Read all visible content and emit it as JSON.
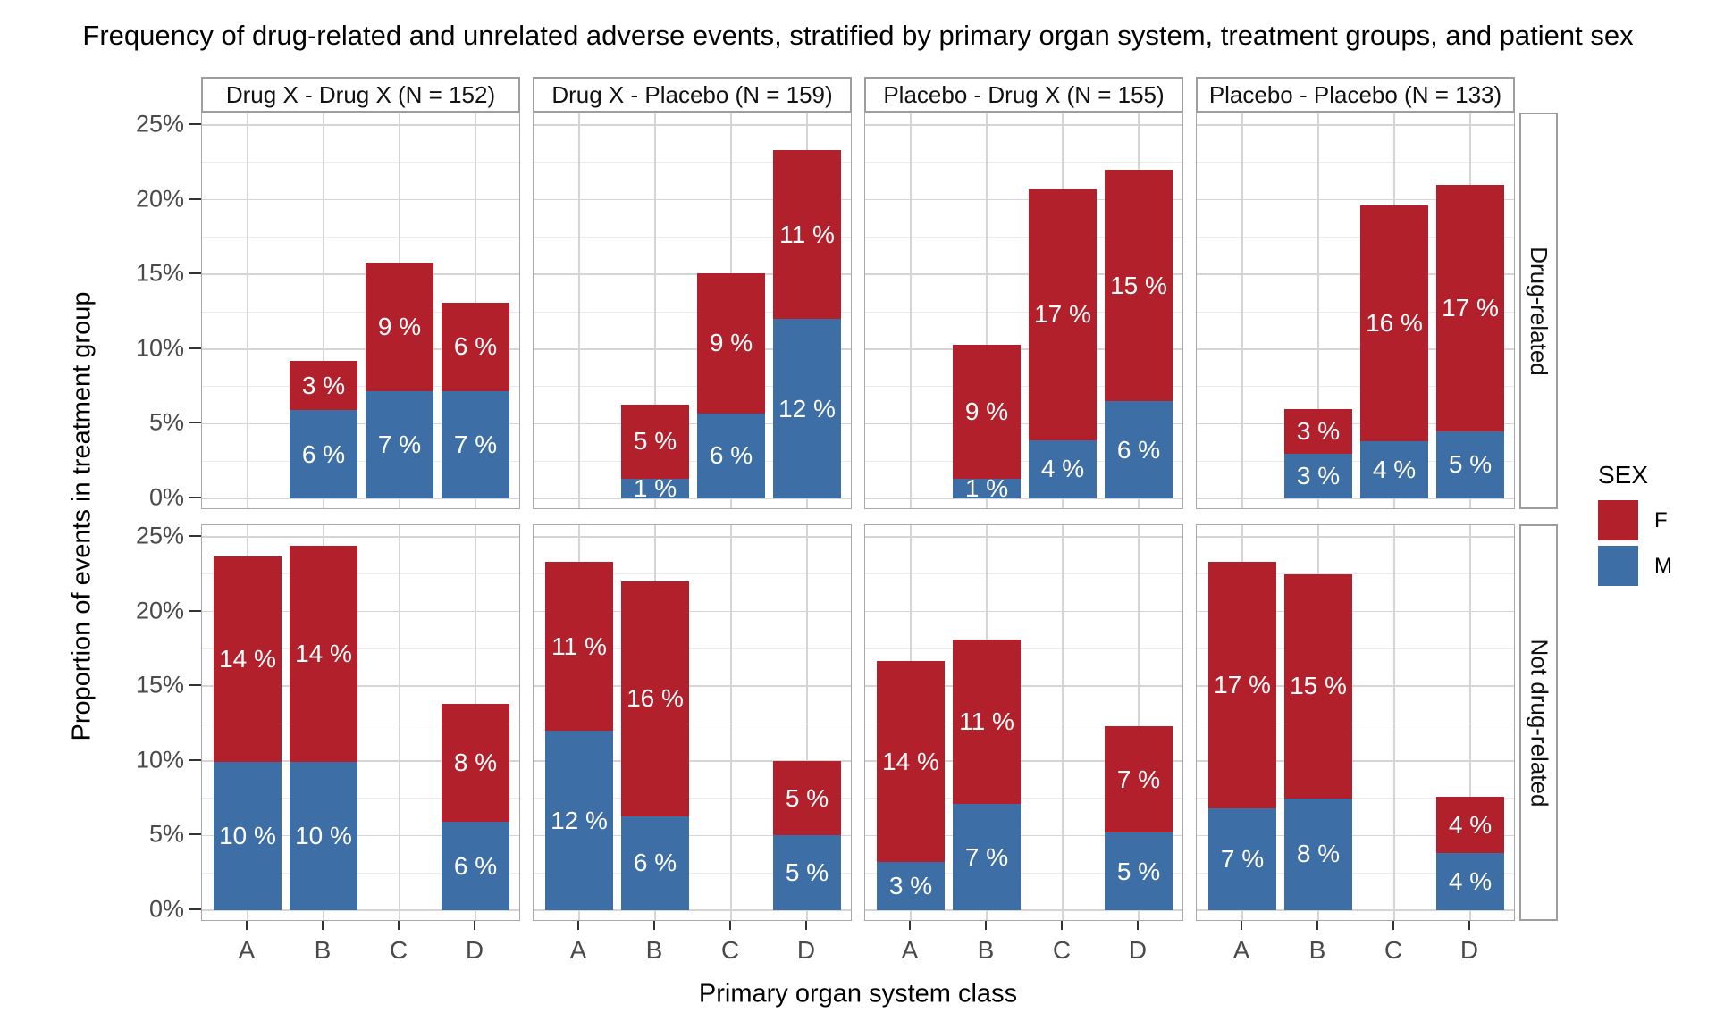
{
  "chart_data": {
    "type": "bar",
    "stacked": true,
    "title": "Frequency of drug-related and unrelated adverse events, stratified by primary organ system, treatment groups, and patient sex",
    "xlabel": "Primary organ system class",
    "ylabel": "Proportion of events in treatment group",
    "categories": [
      "A",
      "B",
      "C",
      "D"
    ],
    "y_axis": {
      "min": 0,
      "max": 25,
      "unit": "%",
      "major_ticks": [
        0,
        5,
        10,
        15,
        20,
        25
      ],
      "tick_labels": [
        "0%",
        "5%",
        "10%",
        "15%",
        "20%",
        "25%"
      ],
      "minor_ticks": [
        2.5,
        7.5,
        12.5,
        17.5,
        22.5
      ],
      "grid": true
    },
    "legend": {
      "title": "SEX",
      "position": "right",
      "entries": [
        {
          "label": "F",
          "color": "#B2202B"
        },
        {
          "label": "M",
          "color": "#3E6EA6"
        }
      ]
    },
    "col_facets": [
      "Drug X - Drug X (N = 152)",
      "Drug X - Placebo (N = 159)",
      "Placebo - Drug X (N = 155)",
      "Placebo - Placebo (N = 133)"
    ],
    "row_facets": [
      "Drug-related",
      "Not drug-related"
    ],
    "panels": [
      {
        "row": 0,
        "col": 0,
        "row_facet": "Drug-related",
        "col_facet": "Drug X - Drug X (N = 152)",
        "bars": [
          {
            "category": "B",
            "segments": [
              {
                "group": "M",
                "value": 5.9,
                "label": "6 %"
              },
              {
                "group": "F",
                "value": 3.3,
                "label": "3 %"
              }
            ]
          },
          {
            "category": "C",
            "segments": [
              {
                "group": "M",
                "value": 7.2,
                "label": "7 %"
              },
              {
                "group": "F",
                "value": 8.6,
                "label": "9 %"
              }
            ]
          },
          {
            "category": "D",
            "segments": [
              {
                "group": "M",
                "value": 7.2,
                "label": "7 %"
              },
              {
                "group": "F",
                "value": 5.9,
                "label": "6 %"
              }
            ]
          }
        ]
      },
      {
        "row": 0,
        "col": 1,
        "row_facet": "Drug-related",
        "col_facet": "Drug X - Placebo (N = 159)",
        "bars": [
          {
            "category": "B",
            "segments": [
              {
                "group": "M",
                "value": 1.3,
                "label": "1 %"
              },
              {
                "group": "F",
                "value": 5.0,
                "label": "5 %"
              }
            ]
          },
          {
            "category": "C",
            "segments": [
              {
                "group": "M",
                "value": 5.7,
                "label": "6 %"
              },
              {
                "group": "F",
                "value": 9.4,
                "label": "9 %"
              }
            ]
          },
          {
            "category": "D",
            "segments": [
              {
                "group": "M",
                "value": 12.0,
                "label": "12 %"
              },
              {
                "group": "F",
                "value": 11.3,
                "label": "11 %"
              }
            ]
          }
        ]
      },
      {
        "row": 0,
        "col": 2,
        "row_facet": "Drug-related",
        "col_facet": "Placebo - Drug X (N = 155)",
        "bars": [
          {
            "category": "B",
            "segments": [
              {
                "group": "M",
                "value": 1.3,
                "label": "1 %"
              },
              {
                "group": "F",
                "value": 9.0,
                "label": "9 %"
              }
            ]
          },
          {
            "category": "C",
            "segments": [
              {
                "group": "M",
                "value": 3.9,
                "label": "4 %"
              },
              {
                "group": "F",
                "value": 16.8,
                "label": "17 %"
              }
            ]
          },
          {
            "category": "D",
            "segments": [
              {
                "group": "M",
                "value": 6.5,
                "label": "6 %"
              },
              {
                "group": "F",
                "value": 15.5,
                "label": "15 %"
              }
            ]
          }
        ]
      },
      {
        "row": 0,
        "col": 3,
        "row_facet": "Drug-related",
        "col_facet": "Placebo - Placebo (N = 133)",
        "bars": [
          {
            "category": "B",
            "segments": [
              {
                "group": "M",
                "value": 3.0,
                "label": "3 %"
              },
              {
                "group": "F",
                "value": 3.0,
                "label": "3 %"
              }
            ]
          },
          {
            "category": "C",
            "segments": [
              {
                "group": "M",
                "value": 3.8,
                "label": "4 %"
              },
              {
                "group": "F",
                "value": 15.8,
                "label": "16 %"
              }
            ]
          },
          {
            "category": "D",
            "segments": [
              {
                "group": "M",
                "value": 4.5,
                "label": "5 %"
              },
              {
                "group": "F",
                "value": 16.5,
                "label": "17 %"
              }
            ]
          }
        ]
      },
      {
        "row": 1,
        "col": 0,
        "row_facet": "Not drug-related",
        "col_facet": "Drug X - Drug X (N = 152)",
        "bars": [
          {
            "category": "A",
            "segments": [
              {
                "group": "M",
                "value": 9.9,
                "label": "10 %"
              },
              {
                "group": "F",
                "value": 13.8,
                "label": "14 %"
              }
            ]
          },
          {
            "category": "B",
            "segments": [
              {
                "group": "M",
                "value": 9.9,
                "label": "10 %"
              },
              {
                "group": "F",
                "value": 14.5,
                "label": "14 %"
              }
            ]
          },
          {
            "category": "D",
            "segments": [
              {
                "group": "M",
                "value": 5.9,
                "label": "6 %"
              },
              {
                "group": "F",
                "value": 7.9,
                "label": "8 %"
              }
            ]
          }
        ]
      },
      {
        "row": 1,
        "col": 1,
        "row_facet": "Not drug-related",
        "col_facet": "Drug X - Placebo (N = 159)",
        "bars": [
          {
            "category": "A",
            "segments": [
              {
                "group": "M",
                "value": 12.0,
                "label": "12 %"
              },
              {
                "group": "F",
                "value": 11.3,
                "label": "11 %"
              }
            ]
          },
          {
            "category": "B",
            "segments": [
              {
                "group": "M",
                "value": 6.3,
                "label": "6 %"
              },
              {
                "group": "F",
                "value": 15.7,
                "label": "16 %"
              }
            ]
          },
          {
            "category": "D",
            "segments": [
              {
                "group": "M",
                "value": 5.0,
                "label": "5 %"
              },
              {
                "group": "F",
                "value": 5.0,
                "label": "5 %"
              }
            ]
          }
        ]
      },
      {
        "row": 1,
        "col": 2,
        "row_facet": "Not drug-related",
        "col_facet": "Placebo - Drug X (N = 155)",
        "bars": [
          {
            "category": "A",
            "segments": [
              {
                "group": "M",
                "value": 3.2,
                "label": "3 %"
              },
              {
                "group": "F",
                "value": 13.5,
                "label": "14 %"
              }
            ]
          },
          {
            "category": "B",
            "segments": [
              {
                "group": "M",
                "value": 7.1,
                "label": "7 %"
              },
              {
                "group": "F",
                "value": 11.0,
                "label": "11 %"
              }
            ]
          },
          {
            "category": "D",
            "segments": [
              {
                "group": "M",
                "value": 5.2,
                "label": "5 %"
              },
              {
                "group": "F",
                "value": 7.1,
                "label": "7 %"
              }
            ]
          }
        ]
      },
      {
        "row": 1,
        "col": 3,
        "row_facet": "Not drug-related",
        "col_facet": "Placebo - Placebo (N = 133)",
        "bars": [
          {
            "category": "A",
            "segments": [
              {
                "group": "M",
                "value": 6.8,
                "label": "7 %"
              },
              {
                "group": "F",
                "value": 16.5,
                "label": "17 %"
              }
            ]
          },
          {
            "category": "B",
            "segments": [
              {
                "group": "M",
                "value": 7.5,
                "label": "8 %"
              },
              {
                "group": "F",
                "value": 15.0,
                "label": "15 %"
              }
            ]
          },
          {
            "category": "D",
            "segments": [
              {
                "group": "M",
                "value": 3.8,
                "label": "4 %"
              },
              {
                "group": "F",
                "value": 3.8,
                "label": "4 %"
              }
            ]
          }
        ]
      }
    ],
    "style": {
      "background": "#FFFFFF",
      "grid_major": "#D5D5D5",
      "grid_minor": "#EAEAEA",
      "panel_border": "#A9A9A9",
      "strip_border": "#9E9E9E",
      "strip_bg": "#FFFFFF",
      "tick_mark": "#333333",
      "tick_label": "#4A4A4A",
      "bar_label": "#FFFFFF"
    }
  }
}
